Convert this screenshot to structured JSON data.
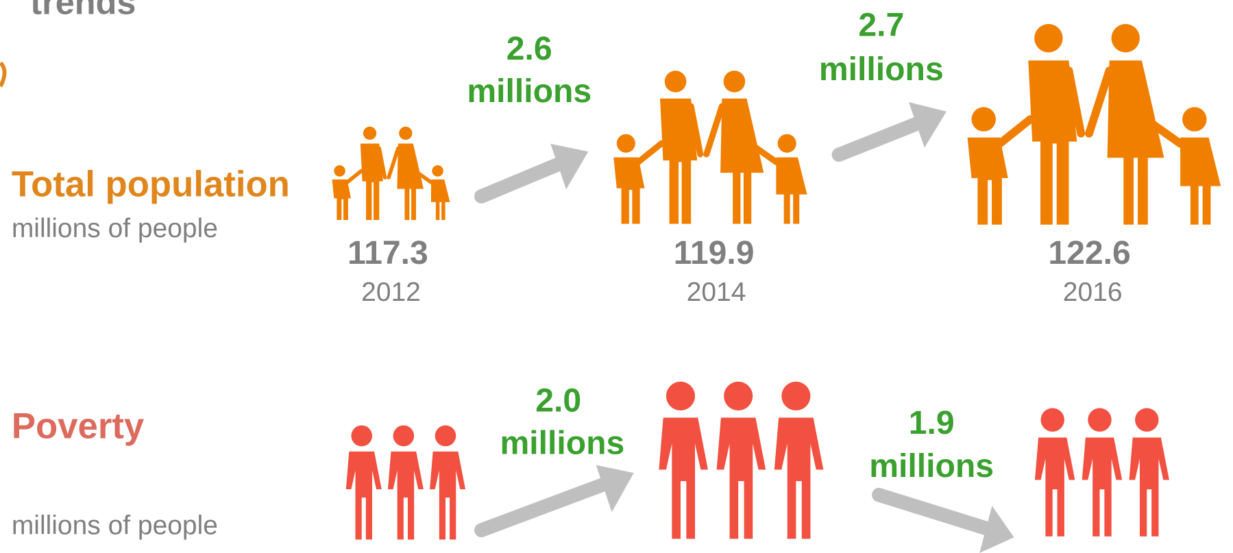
{
  "header": {
    "title": "trends"
  },
  "population": {
    "label": "Total population",
    "unit": "millions of people",
    "points": [
      {
        "value": "117.3",
        "year": "2012"
      },
      {
        "value": "119.9",
        "year": "2014"
      },
      {
        "value": "122.6",
        "year": "2016"
      }
    ],
    "changes": [
      {
        "value": "2.6",
        "unit": "millions"
      },
      {
        "value": "2.7",
        "unit": "millions"
      }
    ]
  },
  "poverty": {
    "label": "Poverty",
    "unit": "millions of people",
    "changes": [
      {
        "value": "2.0",
        "unit": "millions"
      },
      {
        "value": "1.9",
        "unit": "millions"
      }
    ]
  }
}
